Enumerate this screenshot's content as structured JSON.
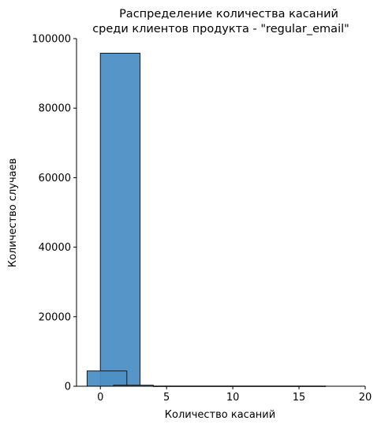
{
  "chart_data": {
    "type": "bar",
    "title_lines": [
      "Распределение количества касаний",
      "среди клиентов продукта - \"regular_email\""
    ],
    "xlabel": "Количество касаний",
    "ylabel": "Количество случаев",
    "xlim": [
      -1.8,
      20
    ],
    "ylim": [
      0,
      100000
    ],
    "xticks": [
      0,
      5,
      10,
      15,
      20
    ],
    "yticks": [
      0,
      20000,
      40000,
      60000,
      80000,
      100000
    ],
    "grid": false,
    "bars": [
      {
        "x0": 0,
        "x1": 3,
        "value": 95800
      },
      {
        "x0": -1,
        "x1": 2,
        "value": 4400
      },
      {
        "x0": 1,
        "x1": 4,
        "value": 300
      },
      {
        "x0": 4,
        "x1": 17,
        "value": 50
      }
    ],
    "colors": {
      "bar_fill": "#4c8fc4",
      "bar_fill_opacity": 0.95,
      "bar_edge": "#1a1a1a"
    }
  }
}
